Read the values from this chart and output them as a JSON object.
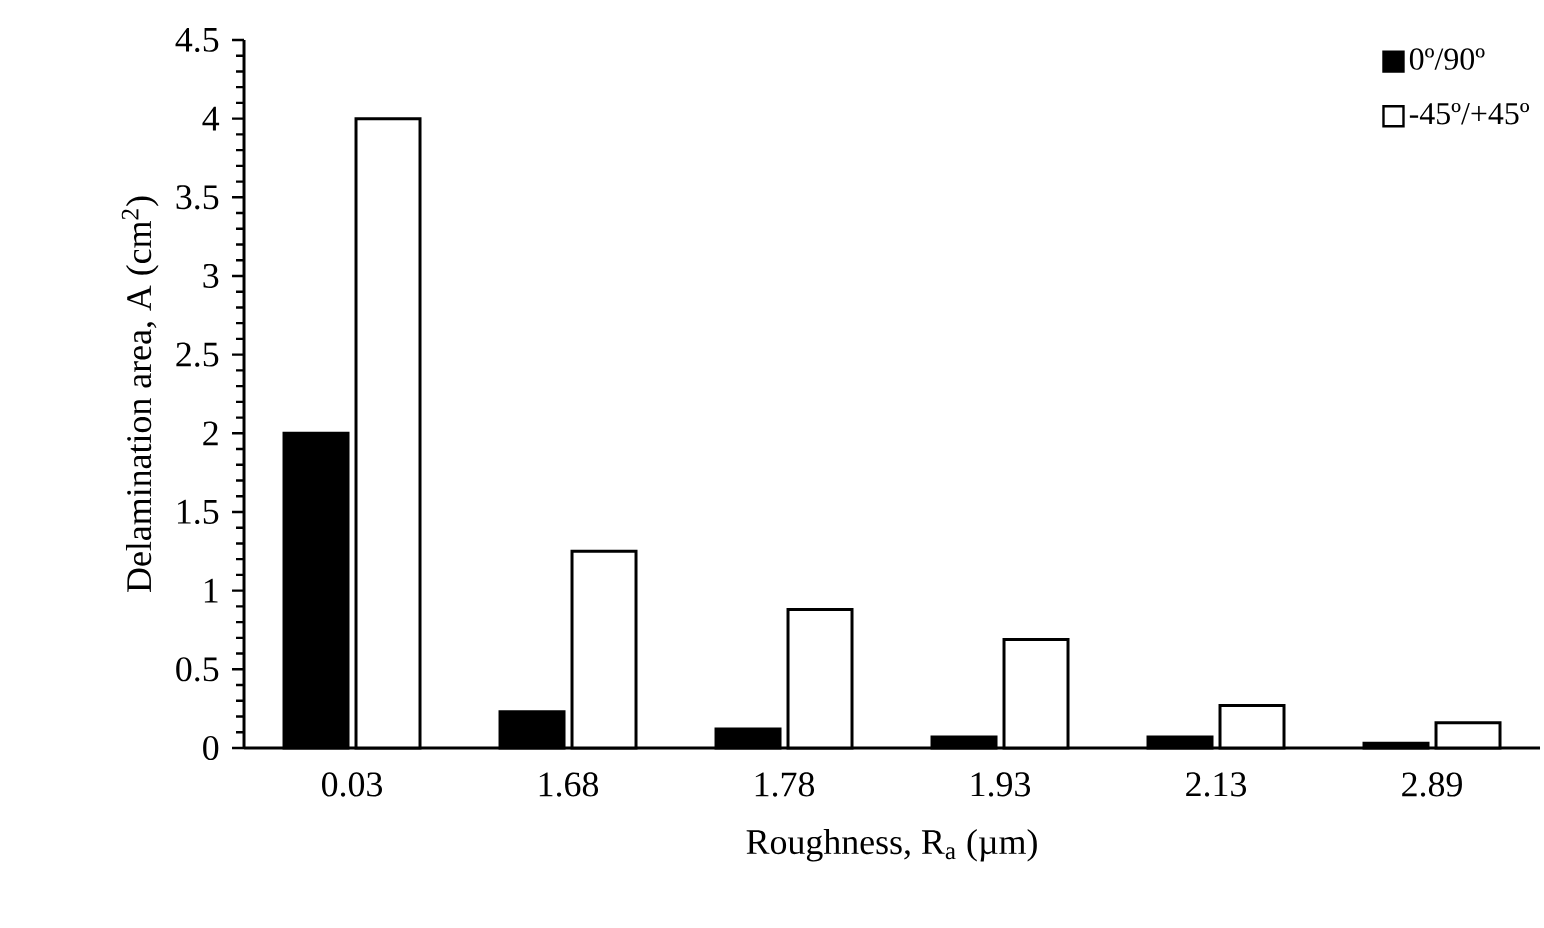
{
  "chart_data": {
    "type": "bar",
    "xlabel": "Roughness, R$_{a}$ (µm)",
    "ylabel": "Delamination area, A (cm$^{2}$)",
    "categories": [
      "0.03",
      "1.68",
      "1.78",
      "1.93",
      "2.13",
      "2.89"
    ],
    "series": [
      {
        "name": "0º/90º",
        "color": "#000000",
        "values": [
          2.0,
          0.23,
          0.12,
          0.07,
          0.07,
          0.03
        ]
      },
      {
        "name": "-45º/+45º",
        "color": "#ffffff",
        "values": [
          4.0,
          1.25,
          0.88,
          0.69,
          0.27,
          0.16
        ]
      }
    ],
    "ylim": [
      0,
      4.5
    ],
    "yticks": [
      0,
      0.5,
      1,
      1.5,
      2,
      2.5,
      3,
      3.5,
      4,
      4.5
    ],
    "grid": false,
    "legend": "top right"
  }
}
